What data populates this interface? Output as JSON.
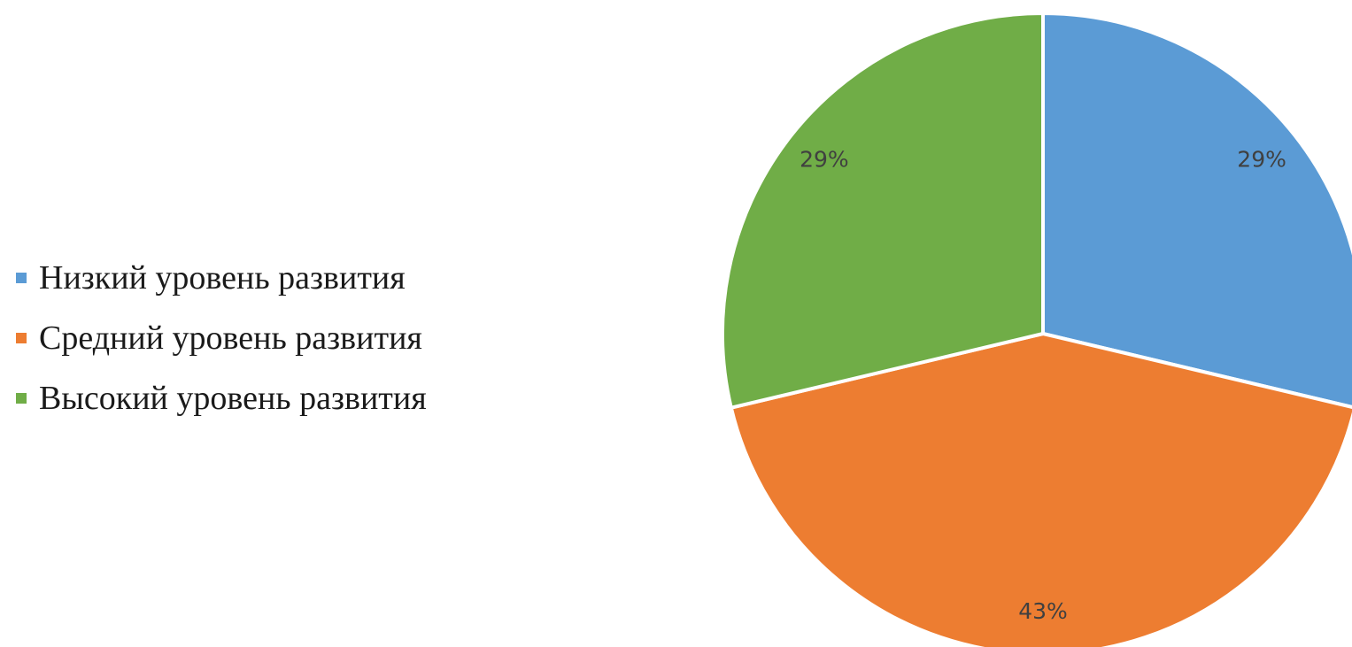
{
  "chart_data": {
    "type": "pie",
    "title": "",
    "categories": [
      "Низкий уровень развития",
      "Средний уровень развития",
      "Высокий уровень развития"
    ],
    "values": [
      29,
      43,
      29
    ],
    "value_labels": [
      "29%",
      "43%",
      "29%"
    ],
    "colors": [
      "#5b9bd5",
      "#ed7d31",
      "#70ad47"
    ],
    "legend_position": "left",
    "start_angle_deg": 0,
    "direction": "clockwise"
  }
}
